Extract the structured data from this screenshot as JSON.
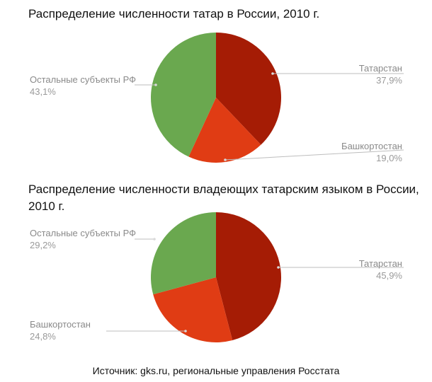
{
  "chart_data": [
    {
      "type": "pie",
      "title": "Распределение численности татар в России, 2010 г.",
      "start_angle_deg": 0,
      "slices": [
        {
          "label": "Татарстан",
          "value_label": "37,9%",
          "value": 37.9,
          "color": "#a51c05"
        },
        {
          "label": "Башкортостан",
          "value_label": "19,0%",
          "value": 19.0,
          "color": "#e03c14"
        },
        {
          "label": "Остальные субъекты РФ",
          "value_label": "43,1%",
          "value": 43.1,
          "color": "#6aa84f"
        }
      ]
    },
    {
      "type": "pie",
      "title": "Распределение численности владеющих татарским языком в России, 2010 г.",
      "start_angle_deg": 0,
      "slices": [
        {
          "label": "Татарстан",
          "value_label": "45,9%",
          "value": 45.9,
          "color": "#a51c05"
        },
        {
          "label": "Башкортостан",
          "value_label": "24,8%",
          "value": 24.8,
          "color": "#e03c14"
        },
        {
          "label": "Остальные субъекты РФ",
          "value_label": "29,2%",
          "value": 29.2,
          "color": "#6aa84f"
        }
      ]
    }
  ],
  "source": "Источник: gks.ru, региональные управления Росстата"
}
